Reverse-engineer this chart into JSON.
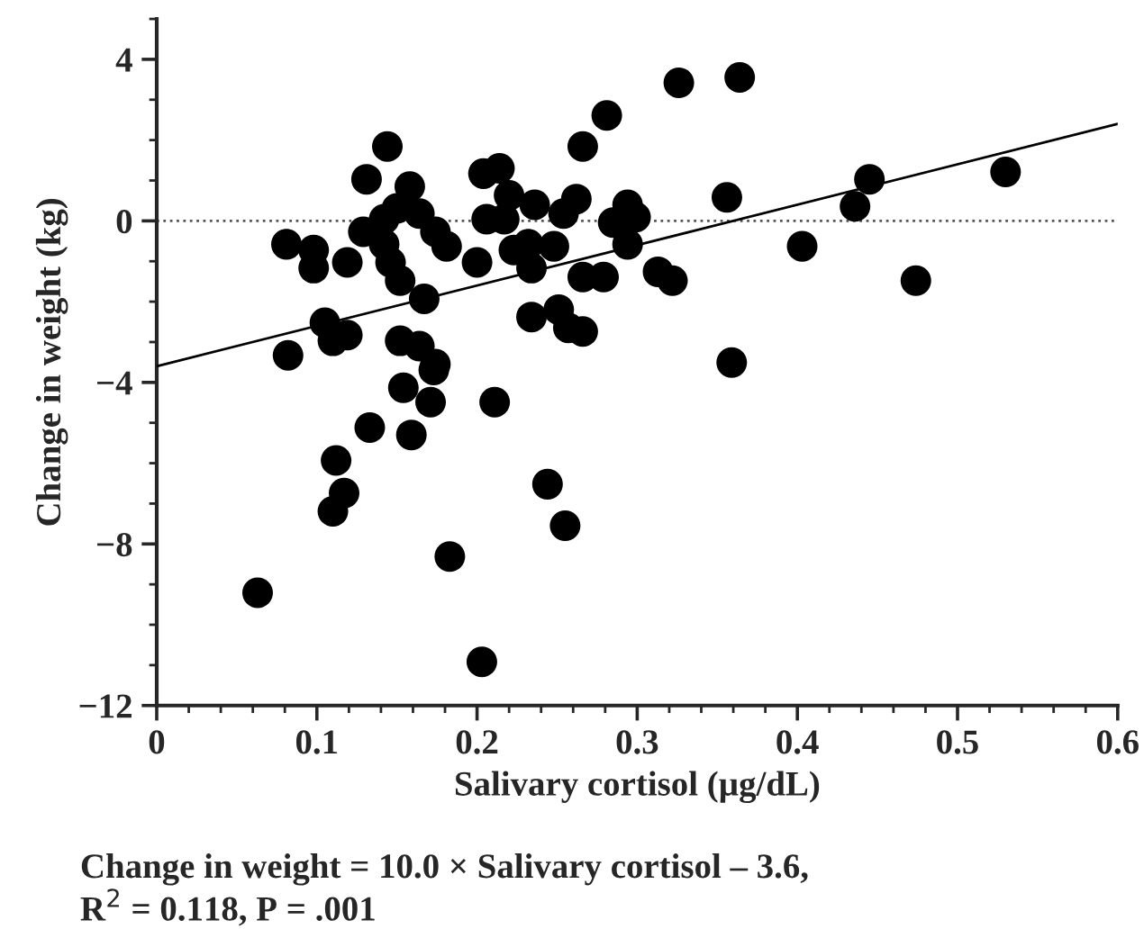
{
  "chart_data": {
    "type": "scatter",
    "xlabel": "Salivary cortisol (µg/dL)",
    "ylabel": "Change in weight (kg)",
    "xlim": [
      0,
      0.6
    ],
    "xticks": [
      0,
      0.1,
      0.2,
      0.3,
      0.4,
      0.5,
      0.6
    ],
    "ylim": [
      -12,
      5
    ],
    "yticks": [
      {
        "value": -12,
        "label": "−12"
      },
      {
        "value": -8,
        "label": "−8"
      },
      {
        "value": -4,
        "label": "−4"
      },
      0,
      4
    ],
    "grid": false,
    "legend": false,
    "series": [
      {
        "color": "#000000",
        "marker": "circle",
        "x": [
          0.144,
          0.131,
          0.158,
          0.081,
          0.098,
          0.098,
          0.119,
          0.129,
          0.142,
          0.15,
          0.142,
          0.146,
          0.152,
          0.164,
          0.174,
          0.181,
          0.2,
          0.204,
          0.214,
          0.206,
          0.167,
          0.105,
          0.11,
          0.119,
          0.082,
          0.152,
          0.164,
          0.174,
          0.326,
          0.364,
          0.281,
          0.266,
          0.22,
          0.236,
          0.262,
          0.254,
          0.294,
          0.285,
          0.299,
          0.217,
          0.232,
          0.248,
          0.223,
          0.294,
          0.234,
          0.266,
          0.279,
          0.313,
          0.322,
          0.356,
          0.403,
          0.234,
          0.251,
          0.257,
          0.266,
          0.359,
          0.445,
          0.436,
          0.53,
          0.474,
          0.173,
          0.154,
          0.171,
          0.211,
          0.133,
          0.159,
          0.112,
          0.117,
          0.11,
          0.244,
          0.255,
          0.183,
          0.063,
          0.203
        ],
        "values": [
          1.84,
          1.03,
          0.85,
          -0.58,
          -0.72,
          -1.17,
          -1.03,
          -0.27,
          0.04,
          0.31,
          -0.58,
          -1.03,
          -1.48,
          0.18,
          -0.27,
          -0.63,
          -1.03,
          1.17,
          1.3,
          0.04,
          -1.93,
          -2.52,
          -2.97,
          -2.83,
          -3.33,
          -2.97,
          -3.1,
          -3.55,
          3.42,
          3.55,
          2.61,
          1.84,
          0.63,
          0.4,
          0.54,
          0.18,
          0.4,
          -0.04,
          0.09,
          0.04,
          -0.58,
          -0.63,
          -0.72,
          -0.58,
          -1.17,
          -1.39,
          -1.39,
          -1.26,
          -1.48,
          0.58,
          -0.63,
          -2.38,
          -2.2,
          -2.65,
          -2.74,
          -3.51,
          1.03,
          0.36,
          1.21,
          -1.48,
          -3.69,
          -4.13,
          -4.49,
          -4.49,
          -5.12,
          -5.3,
          -5.93,
          -6.74,
          -7.19,
          -6.52,
          -7.55,
          -8.31,
          -9.21,
          -10.92
        ]
      },
      {
        "type": "line",
        "color": "#000000",
        "x": [
          0,
          0.6
        ],
        "values": [
          -3.6,
          2.4
        ],
        "line_style": "solid",
        "marker": "none"
      }
    ],
    "ref_lines": [
      {
        "axis": "y",
        "value": 0,
        "color": "#555555",
        "line_style": "dotted"
      }
    ],
    "annotations": [
      "Change in weight = 10.0 × Salivary cortisol – 3.6,",
      "R$^{2}$ = 0.118, P = .001"
    ]
  }
}
